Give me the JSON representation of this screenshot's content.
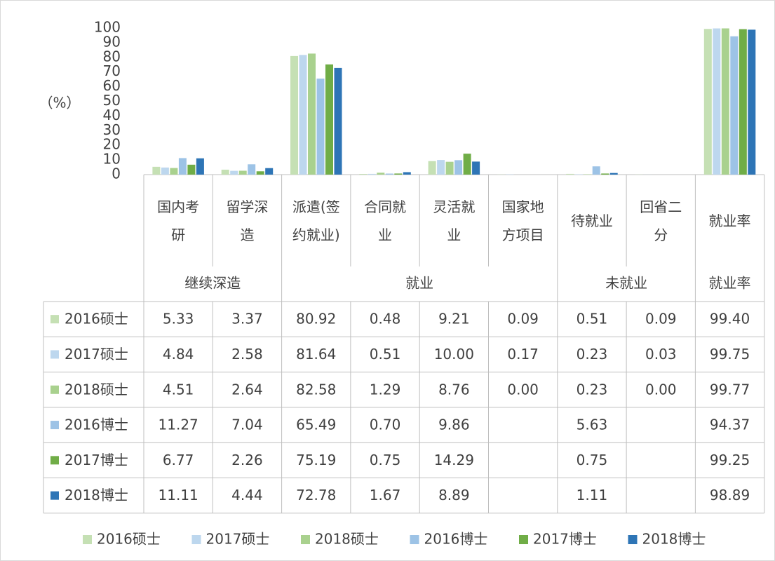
{
  "chart_data": {
    "type": "bar",
    "y_label": "（%）",
    "categories": [
      "国内考研",
      "留学深造",
      "派遣(签约就业)",
      "合同就业",
      "灵活就业",
      "国家地方项目",
      "待就业",
      "回省二分",
      "就业率"
    ],
    "groups": [
      {
        "label": "继续深造",
        "span": 2
      },
      {
        "label": "就业",
        "span": 4
      },
      {
        "label": "未就业",
        "span": 2
      },
      {
        "label": "就业率",
        "span": 1
      }
    ],
    "series": [
      {
        "name": "2016硕士",
        "color": "#c5e0b4",
        "values": [
          5.33,
          3.37,
          80.92,
          0.48,
          9.21,
          0.09,
          0.51,
          0.09,
          99.4
        ],
        "value_labels": [
          "5.33",
          "3.37",
          "80.92",
          "0.48",
          "9.21",
          "0.09",
          "0.51",
          "0.09",
          "99.40"
        ]
      },
      {
        "name": "2017硕士",
        "color": "#bdd7ee",
        "values": [
          4.84,
          2.58,
          81.64,
          0.51,
          10.0,
          0.17,
          0.23,
          0.03,
          99.75
        ],
        "value_labels": [
          "4.84",
          "2.58",
          "81.64",
          "0.51",
          "10.00",
          "0.17",
          "0.23",
          "0.03",
          "99.75"
        ]
      },
      {
        "name": "2018硕士",
        "color": "#a9d18e",
        "values": [
          4.51,
          2.64,
          82.58,
          1.29,
          8.76,
          0.0,
          0.23,
          0.0,
          99.77
        ],
        "value_labels": [
          "4.51",
          "2.64",
          "82.58",
          "1.29",
          "8.76",
          "0.00",
          "0.23",
          "0.00",
          "99.77"
        ]
      },
      {
        "name": "2016博士",
        "color": "#9dc3e6",
        "values": [
          11.27,
          7.04,
          65.49,
          0.7,
          9.86,
          null,
          5.63,
          null,
          94.37
        ],
        "value_labels": [
          "11.27",
          "7.04",
          "65.49",
          "0.70",
          "9.86",
          null,
          "5.63",
          null,
          "94.37"
        ]
      },
      {
        "name": "2017博士",
        "color": "#70ad47",
        "values": [
          6.77,
          2.26,
          75.19,
          0.75,
          14.29,
          null,
          0.75,
          null,
          99.25
        ],
        "value_labels": [
          "6.77",
          "2.26",
          "75.19",
          "0.75",
          "14.29",
          null,
          "0.75",
          null,
          "99.25"
        ]
      },
      {
        "name": "2018博士",
        "color": "#2e75b6",
        "values": [
          11.11,
          4.44,
          72.78,
          1.67,
          8.89,
          null,
          1.11,
          null,
          98.89
        ],
        "value_labels": [
          "11.11",
          "4.44",
          "72.78",
          "1.67",
          "8.89",
          null,
          "1.11",
          null,
          "98.89"
        ]
      }
    ],
    "ylim": [
      0,
      100
    ],
    "yticks": [
      0,
      10,
      20,
      30,
      40,
      50,
      60,
      70,
      80,
      90,
      100
    ]
  }
}
